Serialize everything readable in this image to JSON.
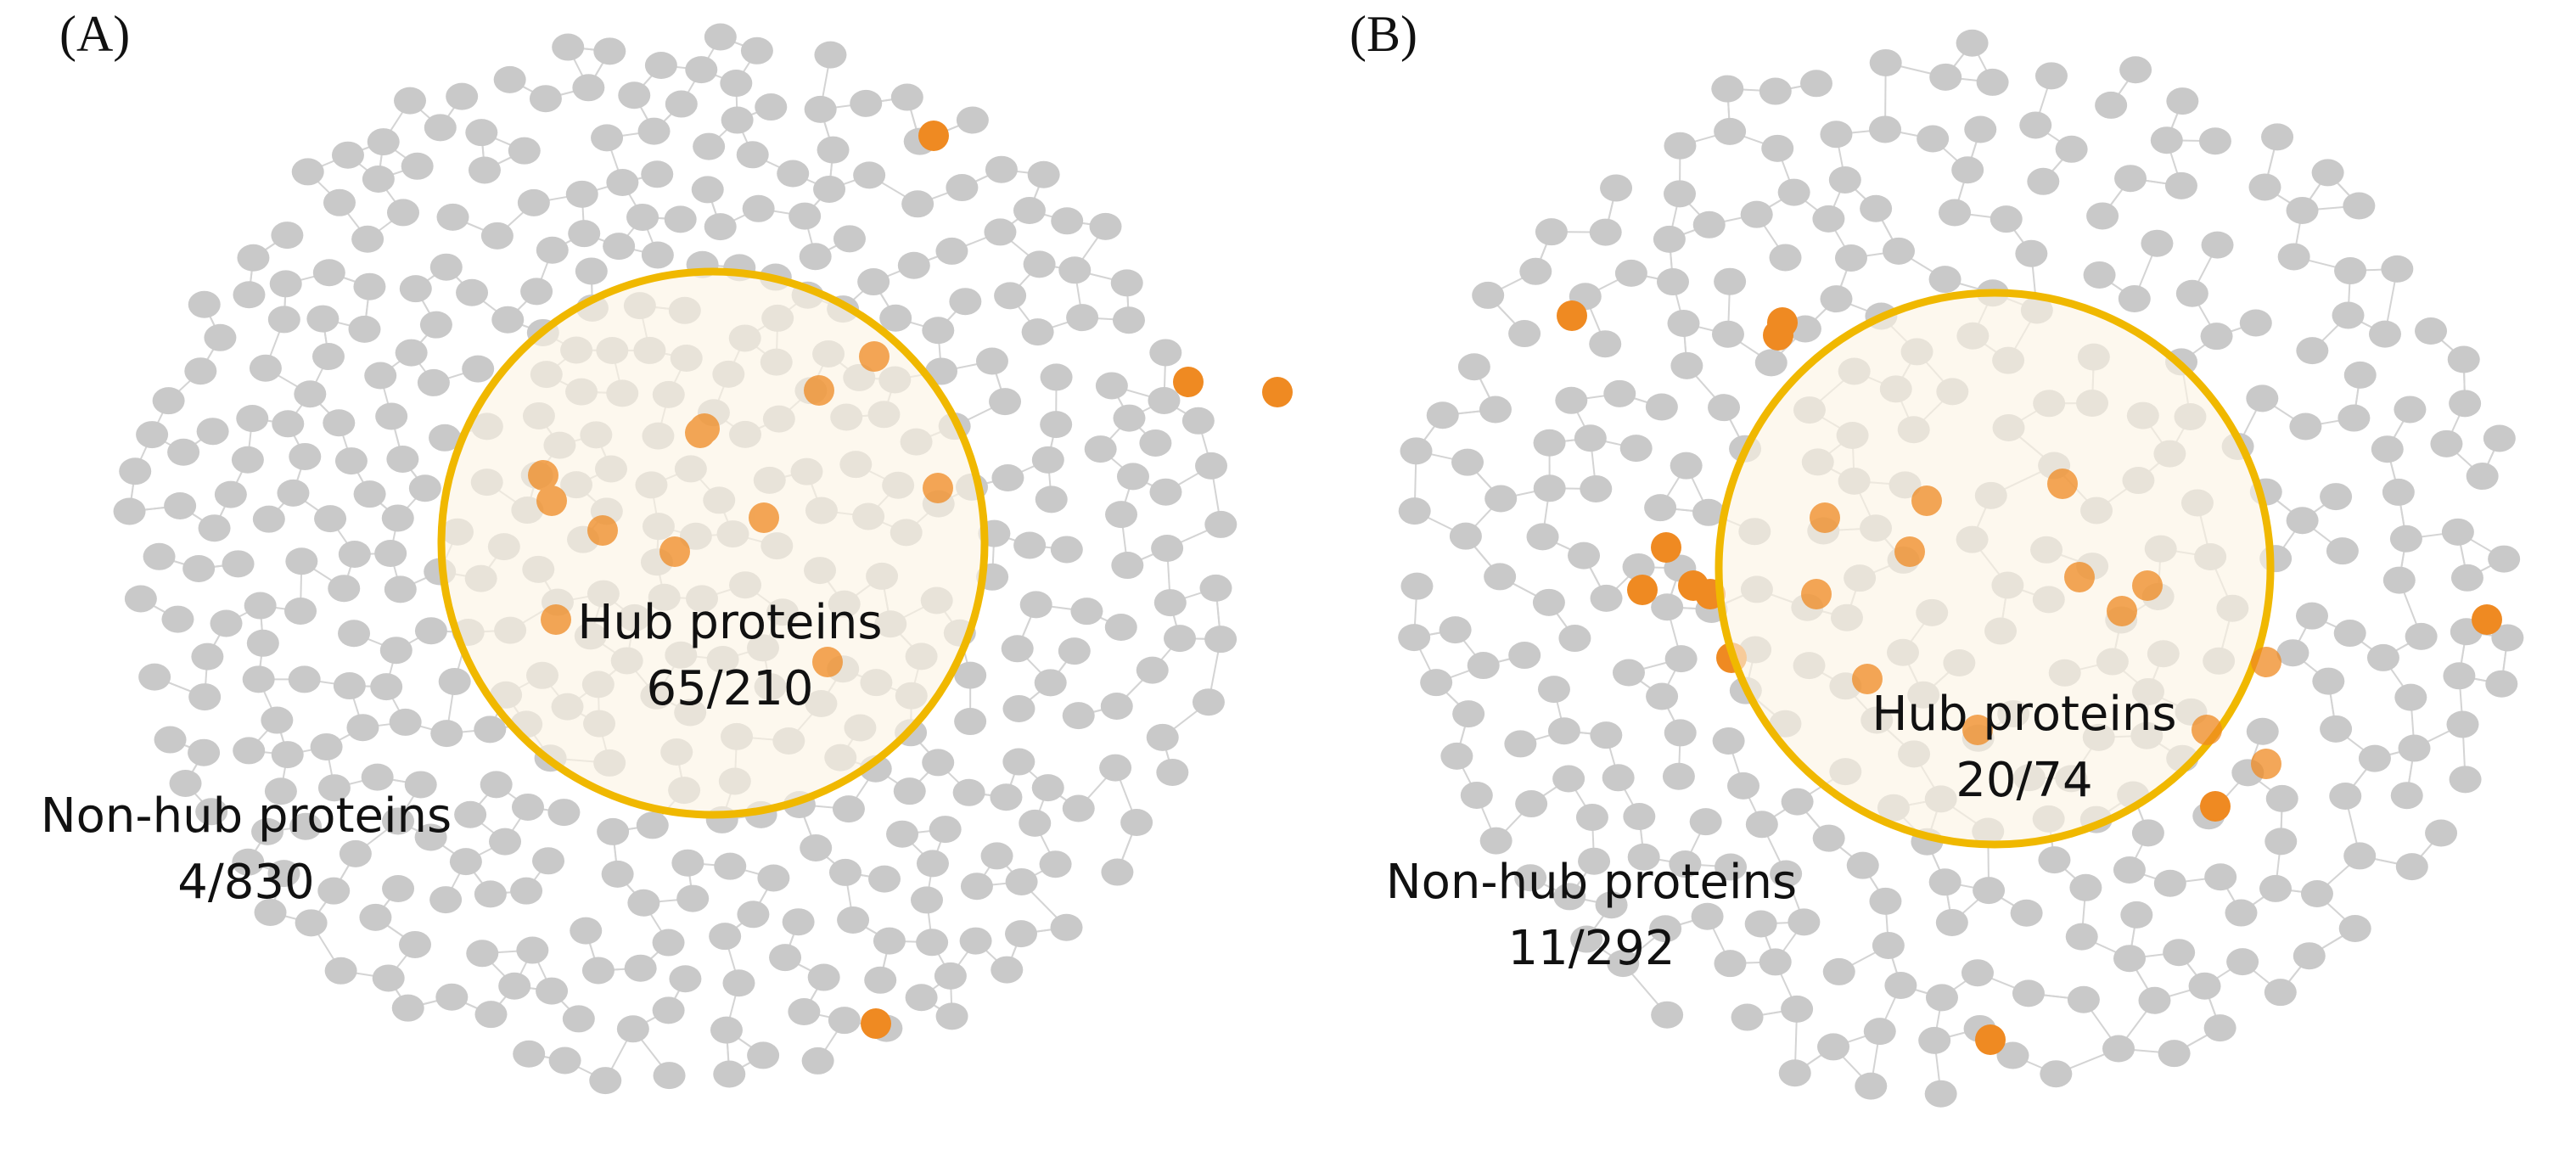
{
  "panels": [
    {
      "id": "A",
      "label": "(A)",
      "hub": {
        "name": "Hub proteins",
        "count": "65/210"
      },
      "nonhub": {
        "name": "Non-hub proteins",
        "count": "4/830"
      }
    },
    {
      "id": "B",
      "label": "(B)",
      "hub": {
        "name": "Hub proteins",
        "count": "20/74"
      },
      "nonhub": {
        "name": "Non-hub proteins",
        "count": "11/292"
      }
    }
  ],
  "colors": {
    "non_hit_node": "#c9c9c9",
    "hit_node": "#ef8a22",
    "edge": "#d4d4d4",
    "hub_ring": "#f0b800",
    "hub_fill": "#fbf3e3"
  }
}
